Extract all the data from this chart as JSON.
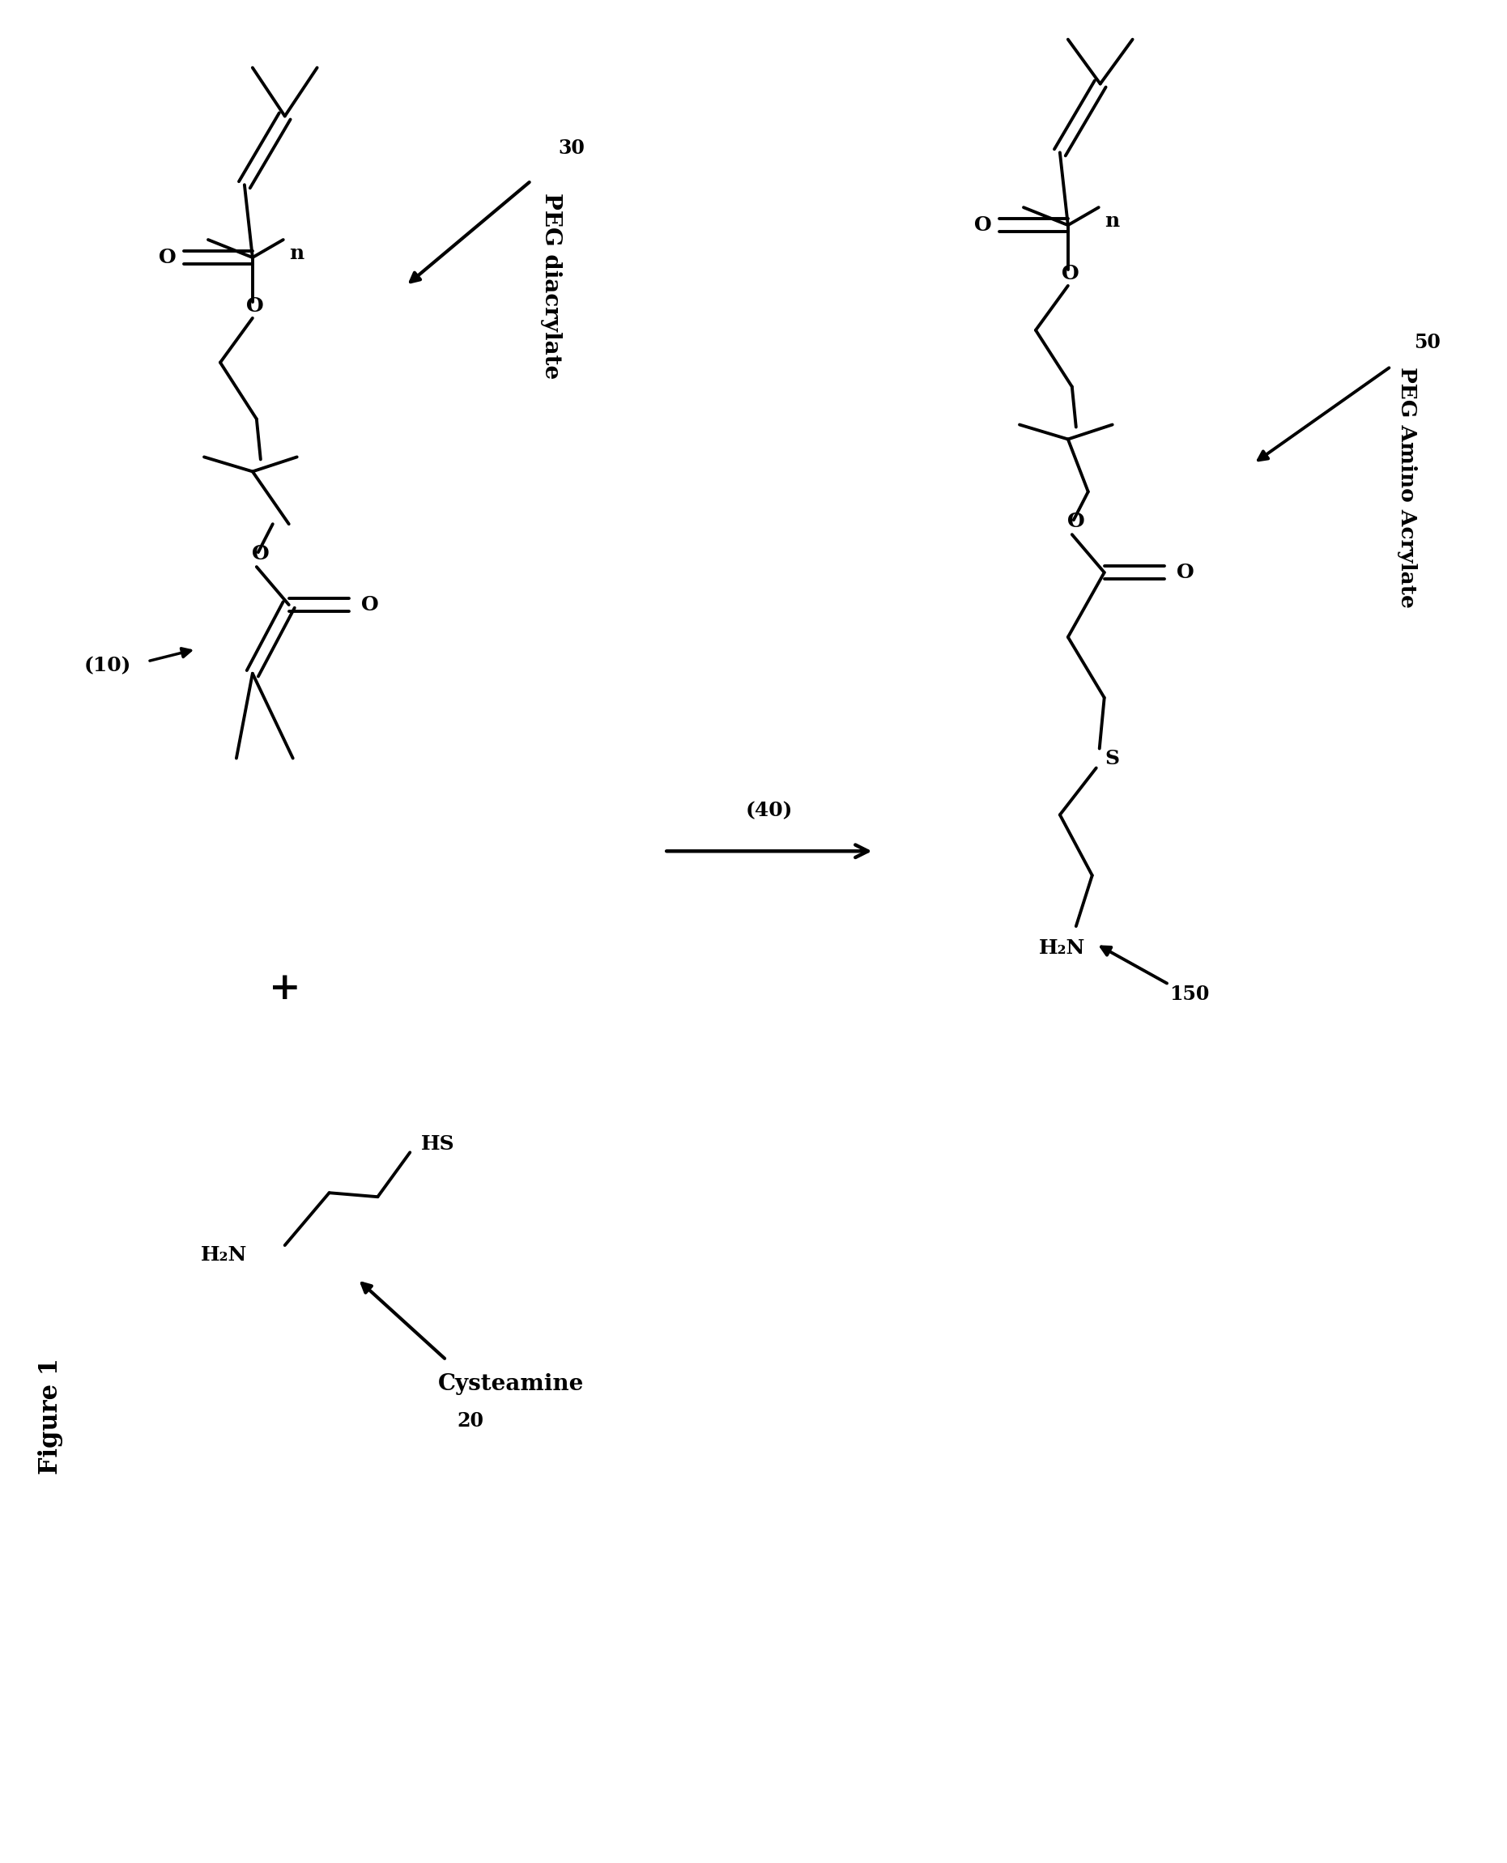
{
  "fig_width": 18.61,
  "fig_height": 23.01,
  "background_color": "#ffffff",
  "lw": 2.8,
  "label_figure1": "Figure 1",
  "label_10": "(10)",
  "label_20": "20",
  "label_30": "30",
  "label_40": "(40)",
  "label_50": "50",
  "label_150": "150",
  "label_peg_diacrylate": "PEG diacrylate",
  "label_cysteamine": "Cysteamine",
  "label_peg_amino_acrylate": "PEG Amino Acrylate",
  "label_plus": "+",
  "label_n": "n",
  "label_O": "O",
  "label_S": "S",
  "label_H2N": "H₂N",
  "label_HS": "HS"
}
